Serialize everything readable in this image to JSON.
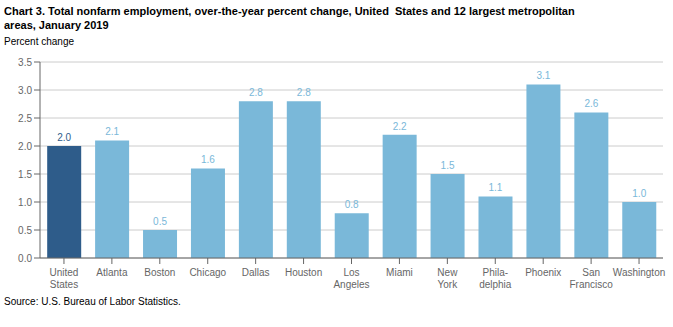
{
  "chart_data": {
    "type": "bar",
    "title": "Chart 3. Total nonfarm employment, over-the-year percent change, United  States and 12 largest metropolitan\nareas, January 2019",
    "ylabel": "Percent change",
    "annotations": [
      "Source: U.S. Bureau of Labor Statistics."
    ],
    "categories": [
      "United\nStates",
      "Atlanta",
      "Boston",
      "Chicago",
      "Dallas",
      "Houston",
      "Los\nAngeles",
      "Miami",
      "New\nYork",
      "Phila-\ndelphia",
      "Phoenix",
      "San\nFrancisco",
      "Washington"
    ],
    "values": [
      2.0,
      2.1,
      0.5,
      1.6,
      2.8,
      2.8,
      0.8,
      2.2,
      1.5,
      1.1,
      3.1,
      2.6,
      1.0
    ],
    "value_labels": [
      "2.0",
      "2.1",
      "0.5",
      "1.6",
      "2.8",
      "2.8",
      "0.8",
      "2.2",
      "1.5",
      "1.1",
      "3.1",
      "2.6",
      "1.0"
    ],
    "colors": [
      "#2E5C8A",
      "#7AB8D9",
      "#7AB8D9",
      "#7AB8D9",
      "#7AB8D9",
      "#7AB8D9",
      "#7AB8D9",
      "#7AB8D9",
      "#7AB8D9",
      "#7AB8D9",
      "#7AB8D9",
      "#7AB8D9",
      "#7AB8D9"
    ],
    "ylim": [
      0,
      3.5
    ],
    "yticks": [
      {
        "value": 0,
        "label": "0.0"
      },
      0.5,
      {
        "value": 1,
        "label": "1.0"
      },
      1.5,
      {
        "value": 2,
        "label": "2.0"
      },
      2.5,
      {
        "value": 3,
        "label": "3.0"
      },
      3.5
    ],
    "grid": true,
    "data_labels": true
  }
}
